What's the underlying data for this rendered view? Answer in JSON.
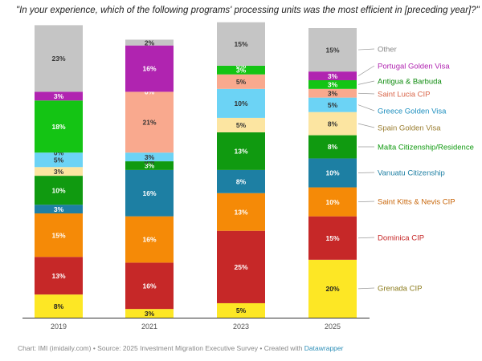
{
  "chart_data": {
    "type": "stacked-bar",
    "title": "\"In your experience, which of the following programs' processing units was the most efficient in [preceding year]?\"",
    "categories": [
      "2019",
      "2021",
      "2023",
      "2025"
    ],
    "ylim": [
      0,
      100
    ],
    "series": [
      {
        "name": "Grenada CIP",
        "color": "#fde725",
        "text_color": "#222222",
        "legend_color": "#8a7a1a",
        "values": [
          8,
          3,
          5,
          20
        ]
      },
      {
        "name": "Dominica CIP",
        "color": "#c62828",
        "text_color": "#ffffff",
        "legend_color": "#c62828",
        "values": [
          13,
          16,
          25,
          15
        ]
      },
      {
        "name": "Saint Kitts & Nevis CIP",
        "color": "#f58a07",
        "text_color": "#ffffff",
        "legend_color": "#c8660a",
        "values": [
          15,
          16,
          13,
          10
        ]
      },
      {
        "name": "Vanuatu Citizenship",
        "color": "#1d7fa3",
        "text_color": "#ffffff",
        "legend_color": "#1d7fa3",
        "values": [
          3,
          16,
          8,
          10
        ]
      },
      {
        "name": "Malta Citizenship/Residence",
        "color": "#109a10",
        "text_color": "#ffffff",
        "legend_color": "#109a10",
        "values": [
          10,
          3,
          13,
          8
        ]
      },
      {
        "name": "Spain Golden Visa",
        "color": "#fce5a1",
        "text_color": "#333333",
        "legend_color": "#9a7d30",
        "values": [
          3,
          0,
          5,
          8
        ]
      },
      {
        "name": "Greece Golden Visa",
        "color": "#6cd3f5",
        "text_color": "#333333",
        "legend_color": "#1e8fbf",
        "values": [
          5,
          3,
          10,
          5
        ]
      },
      {
        "name": "Saint Lucia CIP",
        "color": "#f9a98e",
        "text_color": "#333333",
        "legend_color": "#d9664a",
        "values": [
          0,
          21,
          5,
          3
        ]
      },
      {
        "name": "Antigua & Barbuda",
        "color": "#14c414",
        "text_color": "#ffffff",
        "legend_color": "#0c8a0c",
        "values": [
          18,
          0,
          3,
          3
        ]
      },
      {
        "name": "Portugal Golden Visa",
        "color": "#b024b0",
        "text_color": "#ffffff",
        "legend_color": "#b024b0",
        "values": [
          3,
          16,
          0,
          3
        ]
      },
      {
        "name": "Other",
        "color": "#c5c5c5",
        "text_color": "#333333",
        "legend_color": "#888888",
        "values": [
          23,
          2,
          15,
          15
        ]
      }
    ]
  },
  "footer": {
    "prefix": "Chart: IMI (imidaily.com) • Source: 2025 Investment Migration Executive Survey • Created with ",
    "link": "Datawrapper"
  }
}
